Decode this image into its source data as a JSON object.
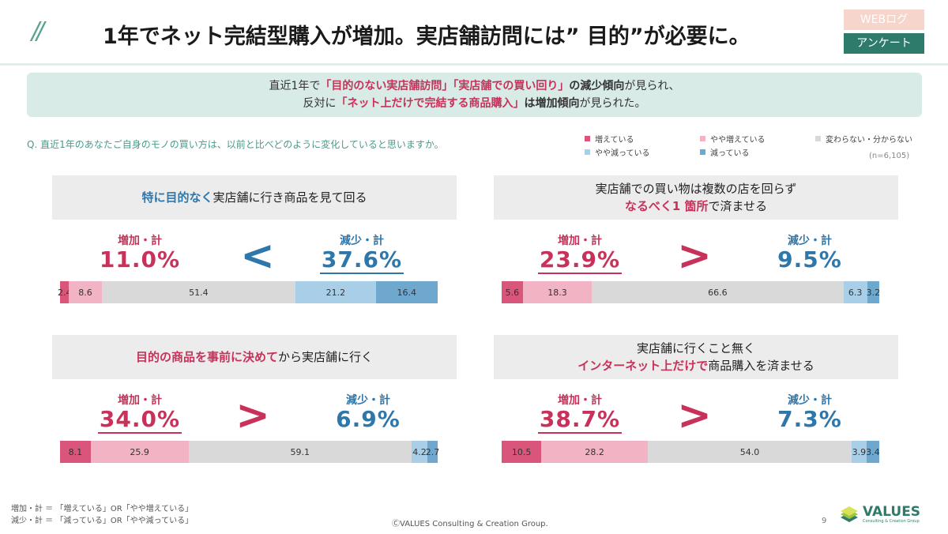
{
  "header": {
    "title": "1年でネット完結型購入が増加。実店舗訪問には” 目的”が必要に。",
    "slash": "//",
    "tag_weblog": "WEBログ",
    "tag_enquete": "アンケート"
  },
  "summary": {
    "l1_a": "直近1年で",
    "l1_b": "「目的のない実店舗訪問」「実店舗での買い回り」",
    "l1_c": "の減少傾向",
    "l1_d": "が見られ、",
    "l2_a": "反対に",
    "l2_b": "「ネット上だけで完結する商品購入」",
    "l2_c": "は増加傾向",
    "l2_d": "が見られた。"
  },
  "question": "Q. 直近1年のあなたご自身のモノの買い方は、以前と比べどのように変化していると思いますか。",
  "n_base": "(n=6,105)",
  "legend": [
    {
      "label": "増えている",
      "color": "#d9557a"
    },
    {
      "label": "やや増えている",
      "color": "#f2b3c4"
    },
    {
      "label": "変わらない・分からない",
      "color": "#d9d9d9"
    },
    {
      "label": "やや減っている",
      "color": "#a9cfe8"
    },
    {
      "label": "減っている",
      "color": "#6fa8cf"
    }
  ],
  "chart_data": {
    "type": "bar",
    "categories": [
      "増えている",
      "やや増えている",
      "変わらない・分からない",
      "やや減っている",
      "減っている"
    ],
    "colors": [
      "#d9557a",
      "#f2b3c4",
      "#d9d9d9",
      "#a9cfe8",
      "#6fa8cf"
    ],
    "panels": [
      {
        "title_a": "特に目的なく",
        "title_b": "実店舗に行き商品を見て回る",
        "title_line2_a": "",
        "title_line2_b": "",
        "inc_label": "増加・計",
        "inc_value": "11.0%",
        "dec_label": "減少・計",
        "dec_value": "37.6%",
        "comparison": "<",
        "values": [
          2.4,
          8.6,
          51.4,
          21.2,
          16.4
        ]
      },
      {
        "title_a": "実店舗での買い物は複数の店を回らず",
        "title_b": "",
        "title_line2_a": "なるべく1 箇所",
        "title_line2_b": "で済ませる",
        "inc_label": "増加・計",
        "inc_value": "23.9%",
        "dec_label": "減少・計",
        "dec_value": "9.5%",
        "comparison": ">",
        "values": [
          5.6,
          18.3,
          66.6,
          6.3,
          3.2
        ]
      },
      {
        "title_a": "目的の商品を事前に決めて",
        "title_b": "から実店舗に行く",
        "title_line2_a": "",
        "title_line2_b": "",
        "inc_label": "増加・計",
        "inc_value": "34.0%",
        "dec_label": "減少・計",
        "dec_value": "6.9%",
        "comparison": ">",
        "values": [
          8.1,
          25.9,
          59.1,
          4.2,
          2.7
        ]
      },
      {
        "title_a": "実店舗に行くこと無く",
        "title_b": "",
        "title_line2_a": "インターネット上だけで",
        "title_line2_b": "商品購入を済ませる",
        "inc_label": "増加・計",
        "inc_value": "38.7%",
        "dec_label": "減少・計",
        "dec_value": "7.3%",
        "comparison": ">",
        "values": [
          10.5,
          28.2,
          54.0,
          3.9,
          3.4
        ]
      }
    ]
  },
  "footer": {
    "def1": "増加・計 ＝ 「増えている」OR「やや増えている」",
    "def2": "減少・計 ＝ 「減っている」OR「やや減っている」",
    "copyright": "ⒸVALUES Consulting & Creation Group.",
    "page": "9",
    "logo": "VALUES",
    "logo_sub": "Consulting & Creation Group"
  }
}
